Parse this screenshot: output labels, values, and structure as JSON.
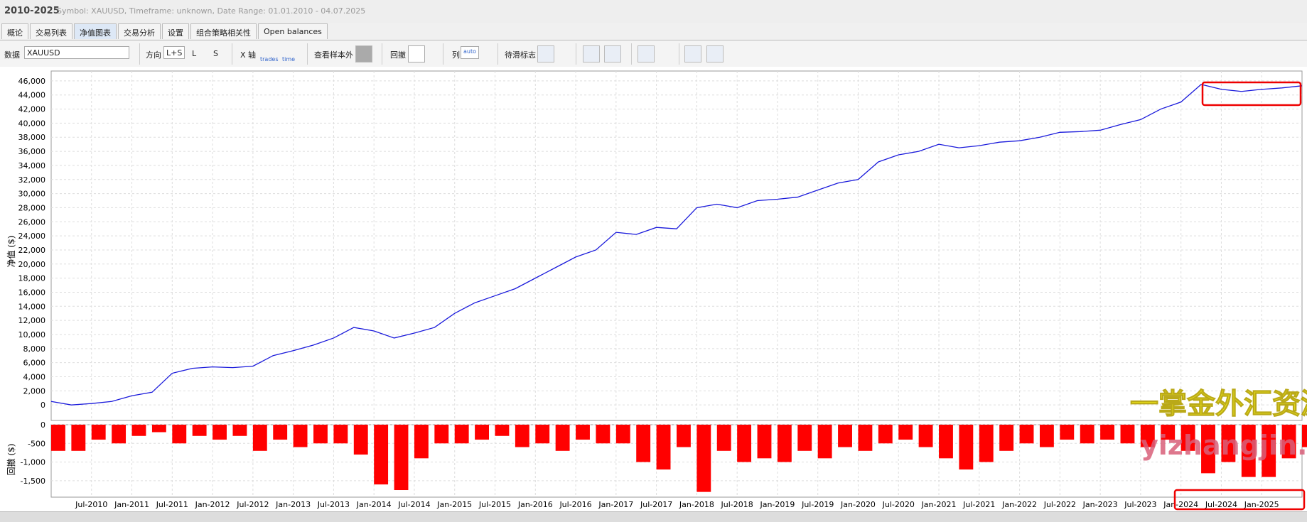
{
  "header": {
    "title": "2010-2025",
    "subtitle": "Symbol: XAUUSD, Timeframe: unknown, Date Range: 01.01.2010 - 04.07.2025"
  },
  "tabs": [
    "概论",
    "交易列表",
    "净值图表",
    "交易分析",
    "设置",
    "组合策略相关性",
    "Open balances"
  ],
  "toolbar": {
    "data_label": "数据",
    "data_value": "XAUUSD",
    "direction_label": "方向",
    "directions": [
      "L+S",
      "L",
      "S"
    ],
    "xaxis_label": "X 轴",
    "xaxis_options": [
      "trades",
      "time"
    ],
    "oos_label": "查看样本外",
    "drawdown_label": "回撤",
    "columns_label": "列",
    "columns_option": "auto",
    "flags_label": "待滑标志"
  },
  "watermark": {
    "line1": "一掌金外汇资源网",
    "line2": "yizhangjin.com"
  },
  "chart_data": [
    {
      "type": "line",
      "y_label": "净值 ($)",
      "color": "#1a1adb",
      "grid": true,
      "x": [
        "Jan-2010",
        "Apr-2010",
        "Jul-2010",
        "Oct-2010",
        "Jan-2011",
        "Apr-2011",
        "Jul-2011",
        "Oct-2011",
        "Jan-2012",
        "Apr-2012",
        "Jul-2012",
        "Oct-2012",
        "Jan-2013",
        "Apr-2013",
        "Jul-2013",
        "Oct-2013",
        "Jan-2014",
        "Apr-2014",
        "Jul-2014",
        "Oct-2014",
        "Jan-2015",
        "Apr-2015",
        "Jul-2015",
        "Oct-2015",
        "Jan-2016",
        "Apr-2016",
        "Jul-2016",
        "Oct-2016",
        "Jan-2017",
        "Apr-2017",
        "Jul-2017",
        "Oct-2017",
        "Jan-2018",
        "Apr-2018",
        "Jul-2018",
        "Oct-2018",
        "Jan-2019",
        "Apr-2019",
        "Jul-2019",
        "Oct-2019",
        "Jan-2020",
        "Apr-2020",
        "Jul-2020",
        "Oct-2020",
        "Jan-2021",
        "Apr-2021",
        "Jul-2021",
        "Oct-2021",
        "Jan-2022",
        "Apr-2022",
        "Jul-2022",
        "Oct-2022",
        "Jan-2023",
        "Apr-2023",
        "Jul-2023",
        "Oct-2023",
        "Jan-2024",
        "Apr-2024",
        "Jul-2024",
        "Oct-2024",
        "Jan-2025",
        "Apr-2025",
        "Jul-2025"
      ],
      "values": [
        500,
        0,
        200,
        500,
        1300,
        1800,
        4500,
        5200,
        5400,
        5300,
        5500,
        7000,
        7700,
        8500,
        9500,
        11000,
        10500,
        9500,
        10200,
        11000,
        13000,
        14500,
        15500,
        16500,
        18000,
        19500,
        21000,
        22000,
        24500,
        24200,
        25200,
        25000,
        28000,
        28500,
        28000,
        29000,
        29200,
        29500,
        30500,
        31500,
        32000,
        34500,
        35500,
        36000,
        37000,
        36500,
        36800,
        37300,
        37500,
        38000,
        38700,
        38800,
        39000,
        39800,
        40500,
        42000,
        43000,
        45500,
        44800,
        44500,
        44800,
        45000,
        45300
      ],
      "xlim": [
        "Jan-2010",
        "Jul-2025"
      ],
      "ylim": [
        -2200,
        47400
      ],
      "yticks": [
        0,
        {
          "value": 2000,
          "label": "2,000"
        },
        {
          "value": 4000,
          "label": "4,000"
        },
        {
          "value": 6000,
          "label": "6,000"
        },
        {
          "value": 8000,
          "label": "8,000"
        },
        {
          "value": 10000,
          "label": "10,000"
        },
        {
          "value": 12000,
          "label": "12,000"
        },
        {
          "value": 14000,
          "label": "14,000"
        },
        {
          "value": 16000,
          "label": "16,000"
        },
        {
          "value": 18000,
          "label": "18,000"
        },
        {
          "value": 20000,
          "label": "20,000"
        },
        {
          "value": 22000,
          "label": "22,000"
        },
        {
          "value": 24000,
          "label": "24,000"
        },
        {
          "value": 26000,
          "label": "26,000"
        },
        {
          "value": 28000,
          "label": "28,000"
        },
        {
          "value": 30000,
          "label": "30,000"
        },
        {
          "value": 32000,
          "label": "32,000"
        },
        {
          "value": 34000,
          "label": "34,000"
        },
        {
          "value": 36000,
          "label": "36,000"
        },
        {
          "value": 38000,
          "label": "38,000"
        },
        {
          "value": 40000,
          "label": "40,000"
        },
        {
          "value": 42000,
          "label": "42,000"
        },
        {
          "value": 44000,
          "label": "44,000"
        },
        {
          "value": 46000,
          "label": "46,000"
        }
      ]
    },
    {
      "type": "bar",
      "y_label": "回撤 ($)",
      "color": "#ff0000",
      "grid": true,
      "x": [
        "Jan-2010",
        "Apr-2010",
        "Jul-2010",
        "Oct-2010",
        "Jan-2011",
        "Apr-2011",
        "Jul-2011",
        "Oct-2011",
        "Jan-2012",
        "Apr-2012",
        "Jul-2012",
        "Oct-2012",
        "Jan-2013",
        "Apr-2013",
        "Jul-2013",
        "Oct-2013",
        "Jan-2014",
        "Apr-2014",
        "Jul-2014",
        "Oct-2014",
        "Jan-2015",
        "Apr-2015",
        "Jul-2015",
        "Oct-2015",
        "Jan-2016",
        "Apr-2016",
        "Jul-2016",
        "Oct-2016",
        "Jan-2017",
        "Apr-2017",
        "Jul-2017",
        "Oct-2017",
        "Jan-2018",
        "Apr-2018",
        "Jul-2018",
        "Oct-2018",
        "Jan-2019",
        "Apr-2019",
        "Jul-2019",
        "Oct-2019",
        "Jan-2020",
        "Apr-2020",
        "Jul-2020",
        "Oct-2020",
        "Jan-2021",
        "Apr-2021",
        "Jul-2021",
        "Oct-2021",
        "Jan-2022",
        "Apr-2022",
        "Jul-2022",
        "Oct-2022",
        "Jan-2023",
        "Apr-2023",
        "Jul-2023",
        "Oct-2023",
        "Jan-2024",
        "Apr-2024",
        "Jul-2024",
        "Oct-2024",
        "Jan-2025",
        "Apr-2025",
        "Jul-2025"
      ],
      "values": [
        -700,
        -700,
        -400,
        -500,
        -300,
        -200,
        -500,
        -300,
        -400,
        -300,
        -700,
        -400,
        -600,
        -500,
        -500,
        -800,
        -1600,
        -1750,
        -900,
        -500,
        -500,
        -400,
        -300,
        -600,
        -500,
        -700,
        -400,
        -500,
        -500,
        -1000,
        -1200,
        -600,
        -1800,
        -700,
        -1000,
        -900,
        -1000,
        -700,
        -900,
        -600,
        -700,
        -500,
        -400,
        -600,
        -900,
        -1200,
        -1000,
        -700,
        -500,
        -600,
        -400,
        -500,
        -400,
        -500,
        -600,
        -400,
        -700,
        -1300,
        -1000,
        -1400,
        -1400,
        -900,
        -600
      ],
      "xlim": [
        "Jan-2010",
        "Jul-2025"
      ],
      "ylim": [
        -1940,
        0
      ],
      "yticks": [
        0,
        -500,
        {
          "value": -1000,
          "label": "-1,000"
        },
        {
          "value": -1500,
          "label": "-1,500"
        }
      ],
      "xticks": [
        "Jul-2010",
        "Jan-2011",
        "Jul-2011",
        "Jan-2012",
        "Jul-2012",
        "Jan-2013",
        "Jul-2013",
        "Jan-2014",
        "Jul-2014",
        "Jan-2015",
        "Jul-2015",
        "Jan-2016",
        "Jul-2016",
        "Jan-2017",
        "Jul-2017",
        "Jan-2018",
        "Jul-2018",
        "Jan-2019",
        "Jul-2019",
        "Jan-2020",
        "Jul-2020",
        "Jan-2021",
        "Jul-2021",
        "Jan-2022",
        "Jul-2022",
        "Jan-2023",
        "Jul-2023",
        "Jan-2024",
        "Jul-2024",
        "Jan-2025"
      ]
    }
  ]
}
